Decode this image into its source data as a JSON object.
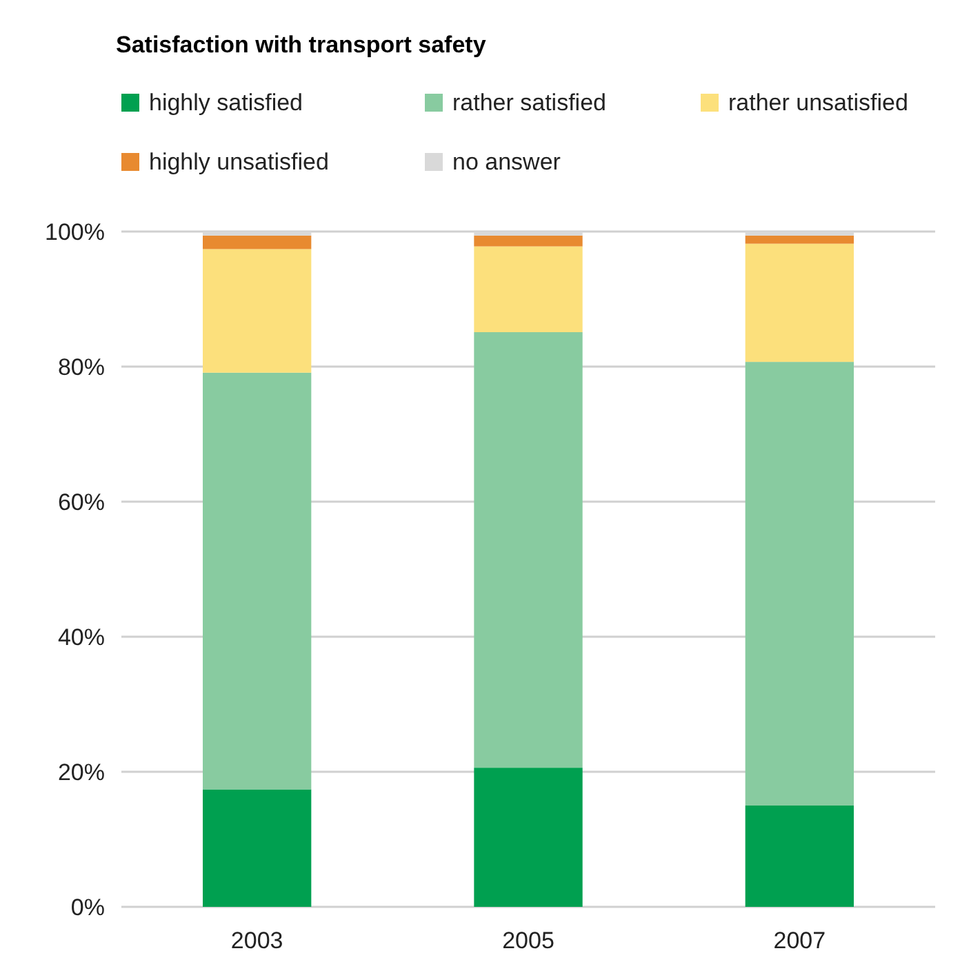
{
  "chart_data": {
    "type": "bar",
    "title": "Satisfaction with transport safety",
    "categories": [
      "2003",
      "2005",
      "2007"
    ],
    "stacked": true,
    "series": [
      {
        "name": "highly satisfied",
        "color": "#00a050",
        "values": [
          17.4,
          20.6,
          15.0
        ]
      },
      {
        "name": "rather satisfied",
        "color": "#88cba0",
        "values": [
          61.7,
          64.5,
          65.7
        ]
      },
      {
        "name": "rather unsatisfied",
        "color": "#fce07c",
        "values": [
          18.3,
          12.7,
          17.5
        ]
      },
      {
        "name": "highly unsatisfied",
        "color": "#e88a30",
        "values": [
          2.0,
          1.6,
          1.2
        ]
      },
      {
        "name": "no answer",
        "color": "#d9d9d9",
        "values": [
          0.6,
          0.6,
          0.6
        ]
      }
    ],
    "ylim": [
      0,
      100
    ],
    "yticks": [
      {
        "value": 0,
        "label": "0%"
      },
      {
        "value": 20,
        "label": "20%"
      },
      {
        "value": 40,
        "label": "40%"
      },
      {
        "value": 60,
        "label": "60%"
      },
      {
        "value": 80,
        "label": "80%"
      },
      {
        "value": 100,
        "label": "100%"
      }
    ],
    "grid": "y",
    "legend": "top"
  }
}
